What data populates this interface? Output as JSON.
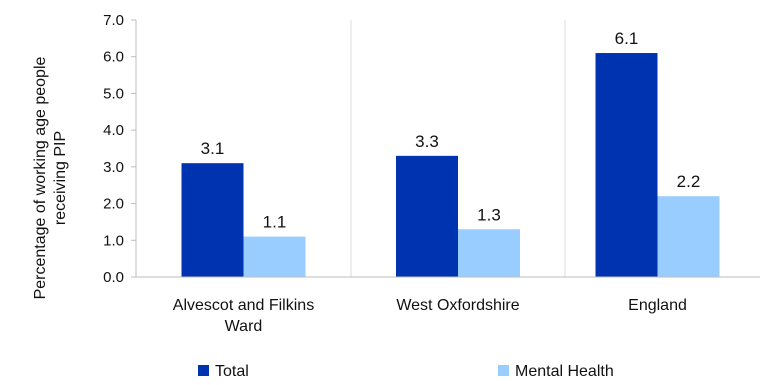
{
  "chart_data": {
    "type": "bar",
    "categories": [
      [
        "Alvescot and Filkins",
        "Ward"
      ],
      [
        "West Oxfordshire"
      ],
      [
        "England"
      ]
    ],
    "series": [
      {
        "name": "Total",
        "values": [
          3.1,
          3.3,
          6.1
        ],
        "color": "#0033b0"
      },
      {
        "name": "Mental Health",
        "values": [
          1.1,
          1.3,
          2.2
        ],
        "color": "#99ccff"
      }
    ],
    "title": "",
    "xlabel": "",
    "ylabel": [
      "Percentage of working age people",
      "receiving PIP"
    ],
    "ylim": [
      0,
      7
    ],
    "yticks": [
      "0.0",
      "1.0",
      "2.0",
      "3.0",
      "4.0",
      "5.0",
      "6.0",
      "7.0"
    ],
    "grid": "vertical separators between categories",
    "legend_position": "bottom",
    "data_labels": [
      [
        "3.1",
        "3.3",
        "6.1"
      ],
      [
        "1.1",
        "1.3",
        "2.2"
      ]
    ]
  }
}
